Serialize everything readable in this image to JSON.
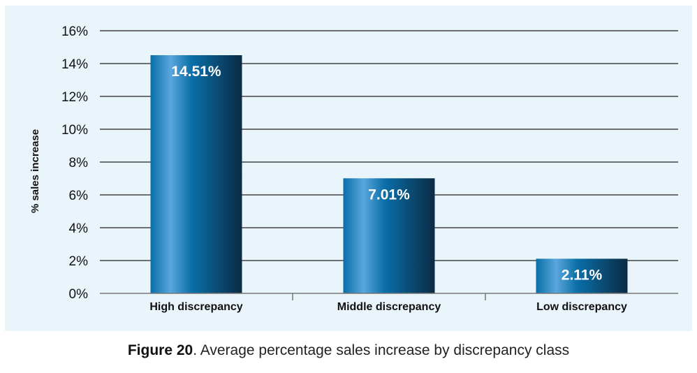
{
  "chart_data": {
    "type": "bar",
    "categories": [
      "High discrepancy",
      "Middle discrepancy",
      "Low discrepancy"
    ],
    "values": [
      14.51,
      7.01,
      2.11
    ],
    "data_labels": [
      "14.51%",
      "7.01%",
      "2.11%"
    ],
    "ylabel": "% sales increase",
    "xlabel": "",
    "ylim": [
      0,
      16
    ],
    "yticks": [
      "0%",
      "2%",
      "4%",
      "6%",
      "8%",
      "10%",
      "12%",
      "14%",
      "16%"
    ],
    "grid": true,
    "legend": "none"
  },
  "colors": {
    "background_panel": "#e9f4fb",
    "bar_light": "#5aa6dc",
    "bar_mid": "#0a6fa8",
    "bar_dark": "#0b2a44",
    "gridline": "#222222"
  },
  "caption": {
    "figure_label": "Figure 20",
    "text": ". Average percentage sales increase by discrepancy class"
  }
}
